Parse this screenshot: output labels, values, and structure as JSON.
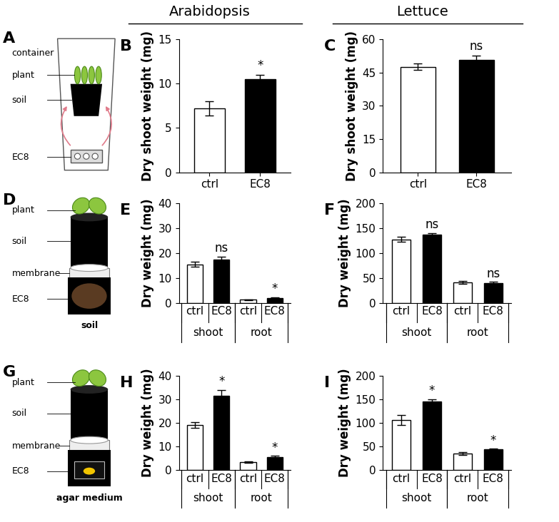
{
  "headers": [
    "Arabidopsis",
    "Lettuce"
  ],
  "schematics": [
    {
      "panel": "A",
      "labels": [
        "container",
        "plant",
        "soil",
        "EC8"
      ]
    },
    {
      "panel": "D",
      "labels": [
        "plant",
        "soil",
        "membrane",
        "EC8"
      ],
      "caption": "soil"
    },
    {
      "panel": "G",
      "labels": [
        "plant",
        "soil",
        "membrane",
        "EC8"
      ],
      "caption": "agar medium"
    }
  ],
  "chart_data": [
    {
      "panel": "B",
      "type": "bar",
      "y_label": "Dry shoot weight (mg)",
      "categories": [
        "ctrl",
        "EC8"
      ],
      "values": [
        7.2,
        10.5
      ],
      "errors": [
        0.8,
        0.5
      ],
      "significance": [
        null,
        "*"
      ],
      "colors": [
        "#ffffff",
        "#000000"
      ],
      "ylim": [
        0,
        15
      ],
      "yticks": [
        0,
        5,
        10,
        15
      ],
      "grid": false
    },
    {
      "panel": "C",
      "type": "bar",
      "y_label": "Dry shoot weight (mg)",
      "categories": [
        "ctrl",
        "EC8"
      ],
      "values": [
        47.5,
        50.5
      ],
      "errors": [
        1.5,
        2.0
      ],
      "significance": [
        null,
        "ns"
      ],
      "colors": [
        "#ffffff",
        "#000000"
      ],
      "ylim": [
        0,
        60
      ],
      "yticks": [
        0,
        15,
        30,
        45,
        60
      ],
      "grid": false
    },
    {
      "panel": "E",
      "type": "bar",
      "y_label": "Dry weight (mg)",
      "categories": [
        "ctrl",
        "EC8",
        "ctrl",
        "EC8"
      ],
      "groups": [
        "shoot",
        "shoot",
        "root",
        "root"
      ],
      "values": [
        15.5,
        17.5,
        1.2,
        2.0
      ],
      "errors": [
        1.0,
        1.2,
        0.2,
        0.2
      ],
      "significance": [
        null,
        "ns",
        null,
        "*"
      ],
      "colors": [
        "#ffffff",
        "#000000",
        "#ffffff",
        "#000000"
      ],
      "ylim": [
        0,
        40
      ],
      "yticks": [
        0,
        10,
        20,
        30,
        40
      ],
      "grid": false
    },
    {
      "panel": "F",
      "type": "bar",
      "y_label": "Dry weight (mg)",
      "categories": [
        "ctrl",
        "EC8",
        "ctrl",
        "EC8"
      ],
      "groups": [
        "shoot",
        "shoot",
        "root",
        "root"
      ],
      "values": [
        128,
        137,
        41,
        40
      ],
      "errors": [
        5,
        4,
        3,
        2
      ],
      "significance": [
        null,
        "ns",
        null,
        "ns"
      ],
      "colors": [
        "#ffffff",
        "#000000",
        "#ffffff",
        "#000000"
      ],
      "ylim": [
        0,
        200
      ],
      "yticks": [
        0,
        50,
        100,
        150,
        200
      ],
      "grid": false
    },
    {
      "panel": "H",
      "type": "bar",
      "y_label": "Dry weight (mg)",
      "categories": [
        "ctrl",
        "EC8",
        "ctrl",
        "EC8"
      ],
      "groups": [
        "shoot",
        "shoot",
        "root",
        "root"
      ],
      "values": [
        19.0,
        31.5,
        3.2,
        5.5
      ],
      "errors": [
        1.2,
        2.5,
        0.3,
        0.4
      ],
      "significance": [
        null,
        "*",
        null,
        "*"
      ],
      "colors": [
        "#ffffff",
        "#000000",
        "#ffffff",
        "#000000"
      ],
      "ylim": [
        0,
        40
      ],
      "yticks": [
        0,
        10,
        20,
        30,
        40
      ],
      "grid": false
    },
    {
      "panel": "I",
      "type": "bar",
      "y_label": "Dry weight (mg)",
      "categories": [
        "ctrl",
        "EC8",
        "ctrl",
        "EC8"
      ],
      "groups": [
        "shoot",
        "shoot",
        "root",
        "root"
      ],
      "values": [
        106,
        145,
        34,
        43
      ],
      "errors": [
        10,
        5,
        3,
        2
      ],
      "significance": [
        null,
        "*",
        null,
        "*"
      ],
      "colors": [
        "#ffffff",
        "#000000",
        "#ffffff",
        "#000000"
      ],
      "ylim": [
        0,
        200
      ],
      "yticks": [
        0,
        50,
        100,
        150,
        200
      ],
      "grid": false
    }
  ]
}
